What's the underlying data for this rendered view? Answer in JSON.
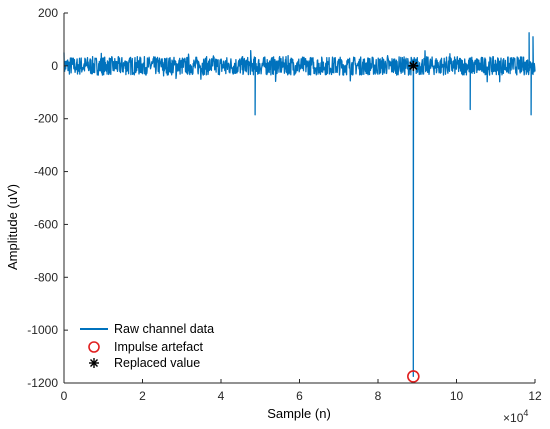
{
  "chart_data": {
    "type": "line",
    "xlabel": "Sample (n)",
    "ylabel": "Amplitude (uV)",
    "x_multiplier_base": "10",
    "x_multiplier_exponent": "4",
    "xlim": [
      0,
      12
    ],
    "ylim": [
      -1200,
      200
    ],
    "x_ticks": [
      0,
      2,
      4,
      6,
      8,
      10,
      12
    ],
    "y_ticks": [
      200,
      0,
      -200,
      -400,
      -600,
      -800,
      -1000,
      -1200
    ],
    "grid": false,
    "legend_position": "bottom-left",
    "series": [
      {
        "name": "Raw channel data",
        "style": "line",
        "color": "#0072BD",
        "x": [
          0.0,
          0.02,
          0.05,
          0.1,
          0.2,
          0.4,
          0.6,
          0.8,
          1.0,
          1.5,
          2.0,
          2.5,
          3.0,
          3.5,
          4.0,
          4.5,
          4.8,
          4.87,
          4.9,
          4.93,
          5.0,
          5.5,
          6.0,
          6.5,
          7.0,
          7.5,
          8.0,
          8.5,
          8.88,
          8.9,
          8.92,
          9.0,
          9.5,
          10.0,
          10.3,
          10.35,
          10.4,
          10.5,
          11.0,
          11.5,
          11.8,
          11.85,
          11.9,
          11.95,
          12.0
        ],
        "y": [
          0,
          40,
          -30,
          65,
          -45,
          20,
          -30,
          25,
          -35,
          20,
          -30,
          25,
          -40,
          30,
          -25,
          20,
          -20,
          -185,
          -25,
          20,
          30,
          -30,
          25,
          -35,
          30,
          -25,
          20,
          -30,
          5,
          -1175,
          5,
          25,
          -30,
          20,
          -30,
          -165,
          -25,
          20,
          -30,
          25,
          -30,
          125,
          -185,
          110,
          0
        ]
      },
      {
        "name": "Impulse artefact",
        "style": "marker-circle",
        "color": "#E02020",
        "x": [
          8.9
        ],
        "y": [
          -1175
        ]
      },
      {
        "name": "Replaced value",
        "style": "marker-asterisk",
        "color": "#000000",
        "x": [
          8.9
        ],
        "y": [
          0
        ]
      }
    ]
  }
}
